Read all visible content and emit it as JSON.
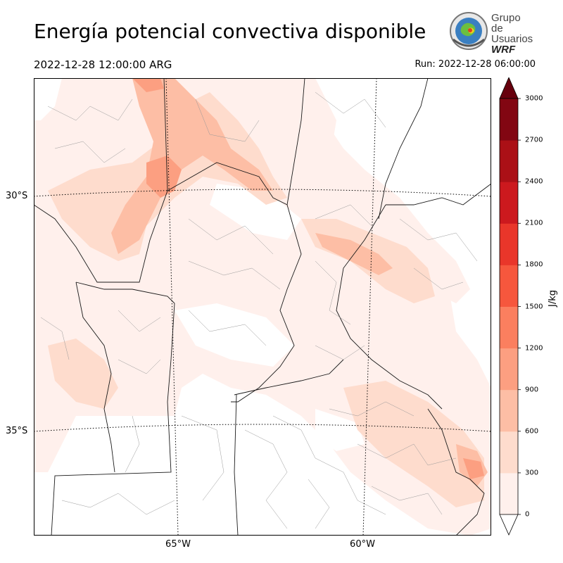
{
  "title": "Energía potencial convectiva disponible",
  "valid_time": "2022-12-28 12:00:00 ARG",
  "run_time": "Run: 2022-12-28 06:00:00",
  "logo": {
    "line1": "Grupo de",
    "line2": "Usuarios",
    "line3": "WRF"
  },
  "map": {
    "lat_labels": [
      "30°S",
      "35°S"
    ],
    "lon_labels": [
      "65°W",
      "60°W"
    ]
  },
  "colorbar": {
    "unit": "J/kg",
    "ticks": [
      "0",
      "300",
      "600",
      "900",
      "1200",
      "1500",
      "1800",
      "2100",
      "2400",
      "2700",
      "3000"
    ],
    "colors": [
      "#fff0ec",
      "#fedccd",
      "#fdbea5",
      "#fc9f81",
      "#fb7f5f",
      "#f6573d",
      "#e9362a",
      "#cc191e",
      "#ab1016",
      "#820612",
      "#67000d"
    ]
  }
}
